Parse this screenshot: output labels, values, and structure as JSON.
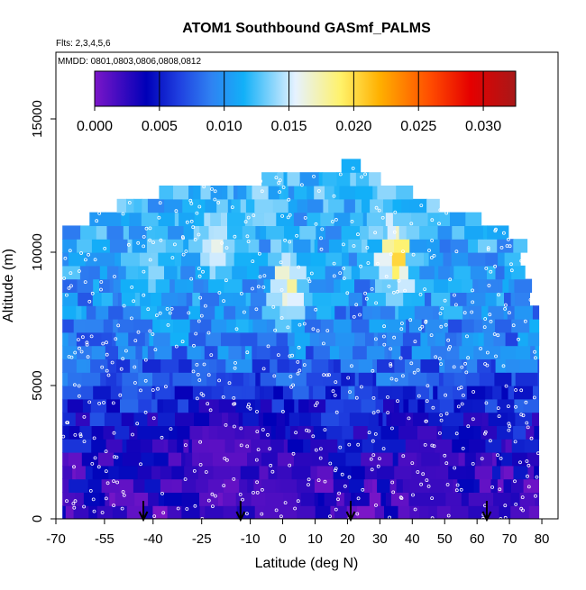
{
  "chart_data": {
    "type": "heatmap",
    "title": "ATOM1 Southbound GASmf_PALMS",
    "subtitle_lines": [
      "Flts: 2,3,4,5,6",
      "MMDD: 0801,0803,0806,0808,0812"
    ],
    "xlabel": "Latitude (deg N)",
    "ylabel": "Altitude (m)",
    "xlim": [
      -70,
      85
    ],
    "ylim": [
      0,
      17500
    ],
    "x_ticks": [
      -70,
      -55,
      -40,
      -25,
      -10,
      0,
      10,
      20,
      30,
      40,
      50,
      60,
      70,
      80
    ],
    "y_ticks": [
      0,
      5000,
      10000,
      15000
    ],
    "grid": false,
    "colorbar": {
      "placement": "top-inside",
      "range": [
        0,
        0.0325
      ],
      "ticks": [
        "0.000",
        "0.005",
        "0.010",
        "0.015",
        "0.020",
        "0.025",
        "0.030"
      ],
      "tick_values": [
        0,
        0.005,
        0.01,
        0.015,
        0.02,
        0.025,
        0.03
      ],
      "stops": [
        {
          "value": 0.0,
          "color": "#7b16c8"
        },
        {
          "value": 0.004,
          "color": "#0000b8"
        },
        {
          "value": 0.0065,
          "color": "#1f3fe0"
        },
        {
          "value": 0.009,
          "color": "#2f82f2"
        },
        {
          "value": 0.0115,
          "color": "#12b0f8"
        },
        {
          "value": 0.0155,
          "color": "#e6f2ff"
        },
        {
          "value": 0.019,
          "color": "#fff26a"
        },
        {
          "value": 0.022,
          "color": "#ffb000"
        },
        {
          "value": 0.026,
          "color": "#ff4a00"
        },
        {
          "value": 0.029,
          "color": "#e50000"
        },
        {
          "value": 0.0325,
          "color": "#a81818"
        }
      ]
    },
    "field": {
      "altitude_bins_m": [
        0,
        500,
        1000,
        1500,
        2000,
        2500,
        3000,
        3500,
        4000,
        4500,
        5000,
        5500,
        6000,
        6500,
        7000,
        7500,
        8000,
        8500,
        9000,
        9500,
        10000,
        10500,
        11000,
        11500,
        12000,
        12500,
        13000,
        13500
      ],
      "top_altitude_m": [
        [
          -70,
          10500
        ],
        [
          -63,
          11000
        ],
        [
          -57,
          11500
        ],
        [
          -45,
          12000
        ],
        [
          -30,
          12500
        ],
        [
          -15,
          12500
        ],
        [
          0,
          13000
        ],
        [
          10,
          13000
        ],
        [
          25,
          13500
        ],
        [
          28,
          13000
        ],
        [
          45,
          12000
        ],
        [
          55,
          11500
        ],
        [
          65,
          11000
        ],
        [
          73,
          10500
        ],
        [
          80,
          7000
        ]
      ],
      "latitude_range": [
        -68,
        79
      ],
      "mean_profile": [
        {
          "alt": 0,
          "value": 0.002
        },
        {
          "alt": 2000,
          "value": 0.003
        },
        {
          "alt": 4000,
          "value": 0.005
        },
        {
          "alt": 5000,
          "value": 0.007
        },
        {
          "alt": 6500,
          "value": 0.009
        },
        {
          "alt": 8500,
          "value": 0.01
        },
        {
          "alt": 10500,
          "value": 0.011
        },
        {
          "alt": 12500,
          "value": 0.012
        }
      ],
      "hotspots": [
        {
          "lat": 35,
          "alt": 9800,
          "value": 0.0205
        },
        {
          "lat": 2,
          "alt": 8800,
          "value": 0.018
        },
        {
          "lat": -20,
          "alt": 10200,
          "value": 0.016
        },
        {
          "lat": -40,
          "alt": 9200,
          "value": 0.014
        }
      ],
      "low_zones": [
        {
          "lat": -20,
          "alt": 2500,
          "value": 0.001
        },
        {
          "lat": 0,
          "alt": 600,
          "value": 0.0015
        },
        {
          "lat": 45,
          "alt": 1500,
          "value": 0.002
        }
      ]
    },
    "markers": [
      {
        "type": "arrow-down",
        "latitude": -43
      },
      {
        "type": "arrow-down",
        "latitude": -13
      },
      {
        "type": "arrow-down",
        "latitude": 21
      },
      {
        "type": "arrow-down",
        "latitude": 63
      }
    ],
    "colors": {
      "background": "#ffffff",
      "points": "#ffffff",
      "axes": "#000000"
    }
  }
}
